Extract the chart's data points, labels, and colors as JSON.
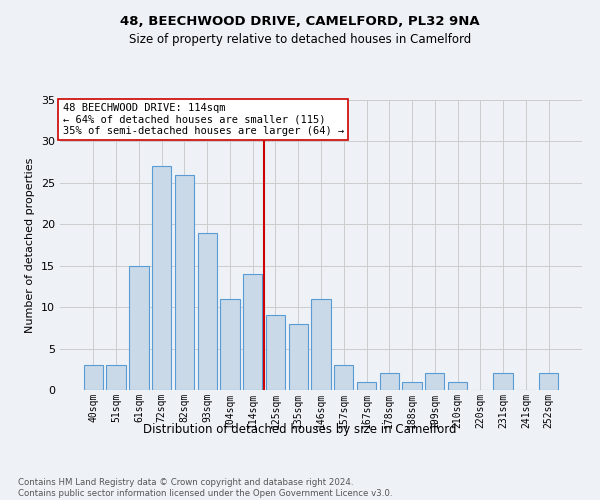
{
  "title": "48, BEECHWOOD DRIVE, CAMELFORD, PL32 9NA",
  "subtitle": "Size of property relative to detached houses in Camelford",
  "xlabel": "Distribution of detached houses by size in Camelford",
  "ylabel": "Number of detached properties",
  "categories": [
    "40sqm",
    "51sqm",
    "61sqm",
    "72sqm",
    "82sqm",
    "93sqm",
    "104sqm",
    "114sqm",
    "125sqm",
    "135sqm",
    "146sqm",
    "157sqm",
    "167sqm",
    "178sqm",
    "188sqm",
    "199sqm",
    "210sqm",
    "220sqm",
    "231sqm",
    "241sqm",
    "252sqm"
  ],
  "values": [
    3,
    3,
    15,
    27,
    26,
    19,
    11,
    14,
    9,
    8,
    11,
    3,
    1,
    2,
    1,
    2,
    1,
    0,
    2,
    0,
    2
  ],
  "highlight_index": 7,
  "bar_color": "#c9d9e8",
  "bar_edge_color": "#5b9bd5",
  "highlight_line_color": "#cc0000",
  "annotation_text": "48 BEECHWOOD DRIVE: 114sqm\n← 64% of detached houses are smaller (115)\n35% of semi-detached houses are larger (64) →",
  "annotation_box_color": "#ffffff",
  "annotation_box_edge": "#cc0000",
  "ylim": [
    0,
    35
  ],
  "yticks": [
    0,
    5,
    10,
    15,
    20,
    25,
    30,
    35
  ],
  "grid_color": "#cccccc",
  "bg_color": "#eef2f7",
  "footnote": "Contains HM Land Registry data © Crown copyright and database right 2024.\nContains public sector information licensed under the Open Government Licence v3.0."
}
